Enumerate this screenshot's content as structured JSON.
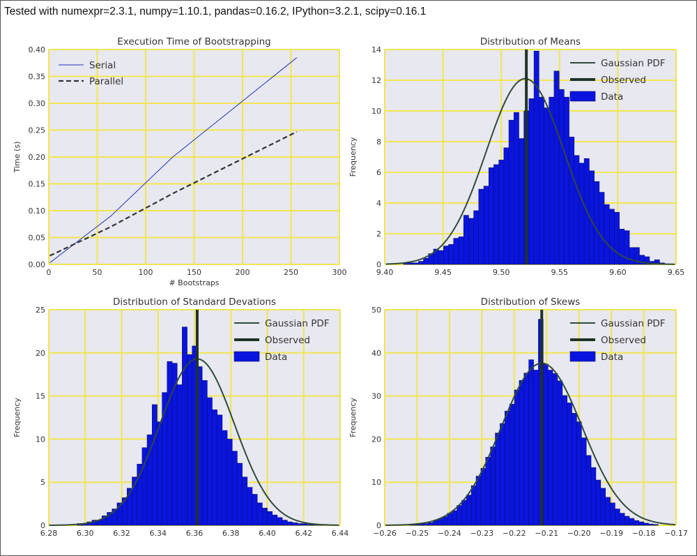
{
  "header": {
    "title": "Tested with numexpr=2.3.1, numpy=1.10.1, pandas=0.16.2, IPython=3.2.1, scipy=0.16.1"
  },
  "colors": {
    "plot_bg": "#e8e8f0",
    "grid": "#f0e650",
    "bar": "#0a14e0",
    "bar_edge": "#0a1060",
    "pdf_line": "#2f4a3a",
    "observed": "#1f3327",
    "serial": "#2233bb",
    "parallel": "#333333",
    "text": "#333333"
  },
  "chart_data": [
    {
      "type": "line",
      "title": "Execution Time of Bootstrapping",
      "xlabel": "# Bootstraps",
      "ylabel": "Time (s)",
      "xlim": [
        0,
        300
      ],
      "ylim": [
        0,
        0.4
      ],
      "xticks": [
        "0",
        "50",
        "100",
        "150",
        "200",
        "250",
        "300"
      ],
      "yticks": [
        "0.00",
        "0.05",
        "0.10",
        "0.15",
        "0.20",
        "0.25",
        "0.30",
        "0.35",
        "0.40"
      ],
      "grid": true,
      "legend": "top-left",
      "series": [
        {
          "name": "Serial",
          "style": "solid",
          "x": [
            1,
            64,
            128,
            256
          ],
          "values": [
            0.003,
            0.09,
            0.2,
            0.385
          ]
        },
        {
          "name": "Parallel",
          "style": "dashed",
          "x": [
            1,
            64,
            128,
            256
          ],
          "values": [
            0.016,
            0.07,
            0.132,
            0.247
          ]
        }
      ]
    },
    {
      "type": "histogram",
      "title": "Distribution of Means",
      "xlabel": "",
      "ylabel": "Frequency",
      "xlim": [
        9.4,
        9.65
      ],
      "ylim": [
        0,
        14
      ],
      "xticks": [
        "9.40",
        "9.45",
        "9.50",
        "9.55",
        "9.60",
        "9.65"
      ],
      "yticks": [
        "0",
        "2",
        "4",
        "6",
        "8",
        "10",
        "12",
        "14"
      ],
      "grid": true,
      "legend": "top-right",
      "legend_entries": [
        "Gaussian PDF",
        "Observed",
        "Data"
      ],
      "bin_start": 9.416,
      "bin_width": 0.00431,
      "values": [
        0.1,
        0.1,
        0.1,
        0.2,
        0.4,
        0.7,
        1.0,
        0.9,
        1.2,
        1.3,
        1.7,
        1.8,
        3.2,
        3.0,
        3.5,
        4.9,
        5.1,
        6.3,
        6.5,
        6.8,
        7.6,
        9.4,
        9.9,
        8.2,
        10.0,
        10.8,
        13.9,
        10.9,
        10.2,
        10.9,
        12.6,
        11.4,
        10.9,
        8.3,
        7.1,
        6.6,
        6.9,
        6.1,
        5.4,
        4.7,
        3.9,
        3.6,
        3.4,
        2.3,
        2.2,
        1.1,
        1.1,
        0.6,
        0.5,
        0.2,
        0.3,
        0.1
      ],
      "pdf": {
        "mean": 9.5205,
        "std": 0.0335,
        "peak": 12.1
      },
      "observed": 9.5215
    },
    {
      "type": "histogram",
      "title": "Distribution of Standard Devations",
      "xlabel": "",
      "ylabel": "Frequency",
      "xlim": [
        6.28,
        6.44
      ],
      "ylim": [
        0,
        25
      ],
      "xticks": [
        "6.28",
        "6.30",
        "6.32",
        "6.34",
        "6.36",
        "6.38",
        "6.40",
        "6.42",
        "6.44"
      ],
      "yticks": [
        "0",
        "5",
        "10",
        "15",
        "20",
        "25"
      ],
      "grid": true,
      "legend": "top-right",
      "legend_entries": [
        "Gaussian PDF",
        "Observed",
        "Data"
      ],
      "bin_start": 6.2955,
      "bin_width": 0.00275,
      "values": [
        0.2,
        0.2,
        0.4,
        0.6,
        0.6,
        1.1,
        1.5,
        1.9,
        2.6,
        3.2,
        4.3,
        5.6,
        7.1,
        9.0,
        10.5,
        14.0,
        12.0,
        15.4,
        19.0,
        18.8,
        16.3,
        23.0,
        19.8,
        20.8,
        18.4,
        16.8,
        14.8,
        13.4,
        12.8,
        11.0,
        10.0,
        8.6,
        7.2,
        5.6,
        4.4,
        3.6,
        2.6,
        2.0,
        1.6,
        1.2,
        0.9,
        0.6,
        0.4,
        0.3,
        0.2,
        0.2,
        0.1,
        0.1,
        0.1,
        0.1
      ],
      "pdf": {
        "mean": 6.3615,
        "std": 0.0205,
        "peak": 19.3
      },
      "observed": 6.3615
    },
    {
      "type": "histogram",
      "title": "Distribution of Skews",
      "xlabel": "",
      "ylabel": "Frequency",
      "xlim": [
        -0.26,
        -0.17
      ],
      "ylim": [
        0,
        50
      ],
      "xticks": [
        "−0.26",
        "−0.25",
        "−0.24",
        "−0.23",
        "−0.22",
        "−0.21",
        "−0.20",
        "−0.19",
        "−0.18",
        "−0.17"
      ],
      "yticks": [
        "0",
        "10",
        "20",
        "30",
        "40",
        "50"
      ],
      "grid": true,
      "legend": "top-right",
      "legend_entries": [
        "Gaussian PDF",
        "Observed",
        "Data"
      ],
      "bin_start": -0.2525,
      "bin_width": 0.00148,
      "values": [
        0.2,
        0.2,
        0.3,
        0.4,
        0.6,
        1.1,
        1.5,
        2.0,
        2.8,
        3.4,
        4.6,
        5.8,
        7.0,
        9.2,
        11.4,
        13.2,
        15.8,
        18.2,
        21.4,
        23.6,
        26.5,
        28.1,
        31.4,
        33.6,
        35.3,
        38.4,
        36.0,
        47.8,
        37.4,
        36.0,
        35.2,
        33.5,
        30.1,
        28.4,
        26.0,
        24.0,
        20.3,
        16.2,
        13.4,
        10.5,
        8.6,
        6.5,
        5.2,
        3.8,
        2.8,
        2.1,
        1.6,
        1.1,
        0.8,
        0.5,
        0.3,
        0.2
      ],
      "pdf": {
        "mean": -0.2115,
        "std": 0.0125,
        "peak": 37.6
      },
      "observed": -0.2115
    }
  ]
}
